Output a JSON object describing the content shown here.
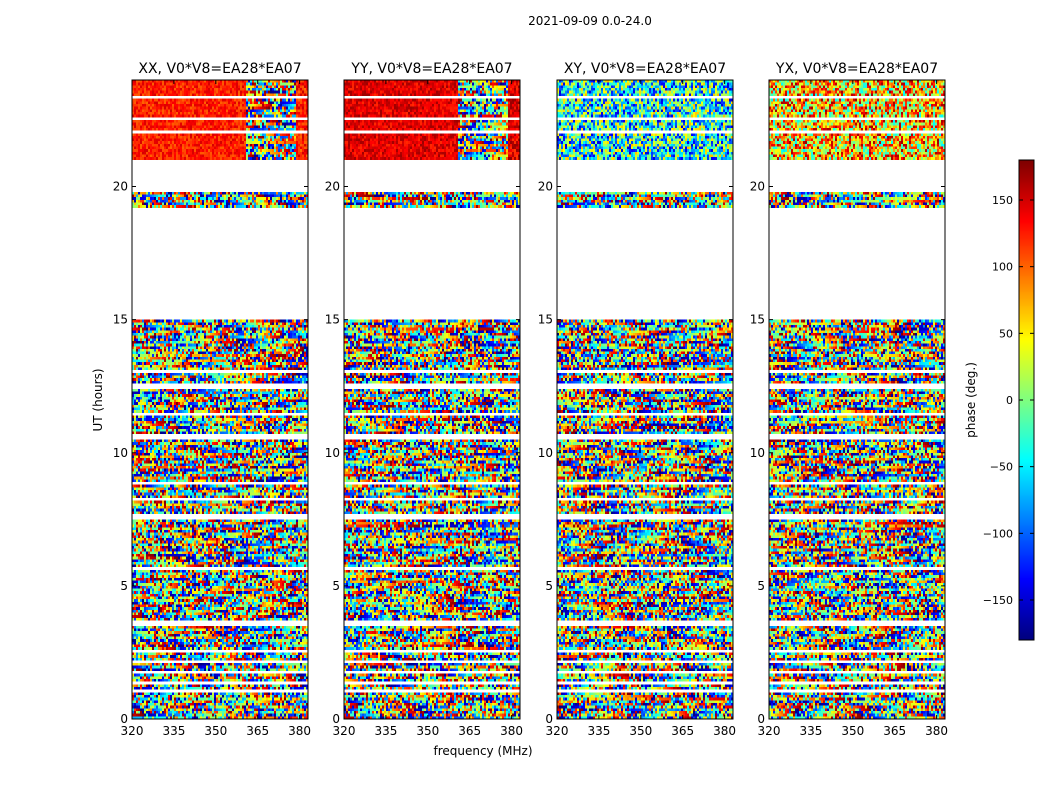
{
  "figure": {
    "suptitle": "2021-09-09 0.0-24.0"
  },
  "chart_data": {
    "type": "heatmap",
    "title": "2021-09-09 0.0-24.0",
    "xlabel": "frequency (MHz)",
    "ylabel": "UT (hours)",
    "xlim": [
      320,
      383
    ],
    "ylim": [
      0,
      24
    ],
    "xticks": [
      320,
      335,
      350,
      365,
      380
    ],
    "yticks": [
      0,
      5,
      10,
      15,
      20
    ],
    "xtick_labels": [
      "320",
      "335",
      "350",
      "365",
      "380"
    ],
    "ytick_labels": [
      "0",
      "5",
      "10",
      "15",
      "20"
    ],
    "colorbar": {
      "label": "phase (deg.)",
      "colormap": "jet",
      "vmin": -180,
      "vmax": 180,
      "ticks": [
        -150,
        -100,
        -50,
        0,
        50,
        100,
        150
      ],
      "tick_labels": [
        "−150",
        "−100",
        "−50",
        "0",
        "50",
        "100",
        "150"
      ]
    },
    "data_bands_hours": [
      [
        0.05,
        0.5
      ],
      [
        0.55,
        1.0
      ],
      [
        1.05,
        1.3
      ],
      [
        1.4,
        1.7
      ],
      [
        1.8,
        2.1
      ],
      [
        2.15,
        2.5
      ],
      [
        2.6,
        3.5
      ],
      [
        3.65,
        4.5
      ],
      [
        4.55,
        5.6
      ],
      [
        5.7,
        5.95
      ],
      [
        6.05,
        6.8
      ],
      [
        6.85,
        7.55
      ],
      [
        7.65,
        8.2
      ],
      [
        8.3,
        8.85
      ],
      [
        8.95,
        9.7
      ],
      [
        9.75,
        10.55
      ],
      [
        10.65,
        11.4
      ],
      [
        11.5,
        12.45
      ],
      [
        12.55,
        13.0
      ],
      [
        13.1,
        14.4
      ],
      [
        14.45,
        15.0
      ],
      [
        19.25,
        19.6
      ],
      [
        19.65,
        19.8
      ],
      [
        21.0,
        22.05
      ],
      [
        22.15,
        22.55
      ],
      [
        22.6,
        23.3
      ],
      [
        23.4,
        24.0
      ]
    ],
    "panels": [
      {
        "name": "XX",
        "title": "XX, V0*V8=EA28*EA07",
        "mode": "coherent",
        "phase_offset": 125,
        "coherent_channel_frac": 0.64
      },
      {
        "name": "YY",
        "title": "YY, V0*V8=EA28*EA07",
        "mode": "coherent",
        "phase_offset": 145,
        "coherent_channel_frac": 0.64
      },
      {
        "name": "XY",
        "title": "XY, V0*V8=EA28*EA07",
        "mode": "noise",
        "phase_offset": -40,
        "coherent_channel_frac": 0
      },
      {
        "name": "YX",
        "title": "YX, V0*V8=EA28*EA07",
        "mode": "noise",
        "phase_offset": 60,
        "coherent_channel_frac": 0
      }
    ]
  }
}
